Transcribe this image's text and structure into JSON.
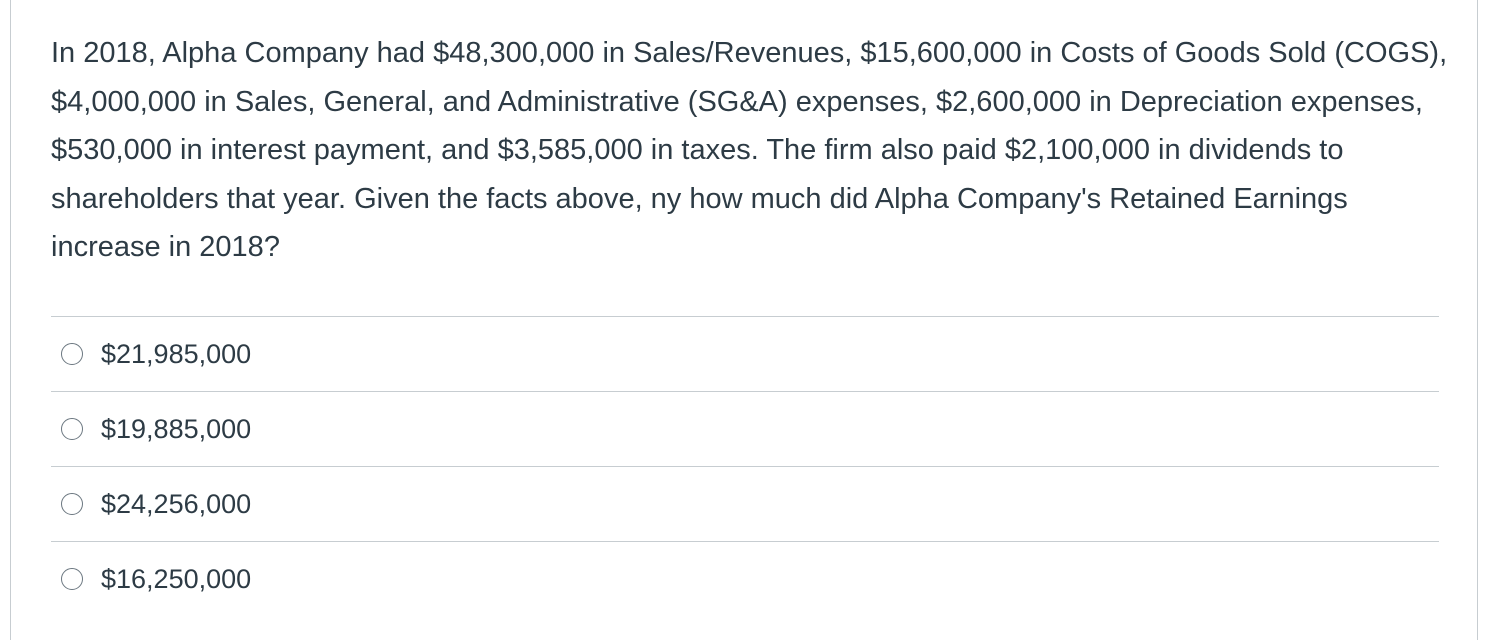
{
  "question": {
    "text": "In 2018, Alpha Company had $48,300,000 in Sales/Revenues, $15,600,000 in Costs of Goods Sold (COGS), $4,000,000 in Sales, General, and Administrative (SG&A) expenses, $2,600,000 in Depreciation expenses, $530,000 in interest payment, and $3,585,000 in taxes. The firm also paid $2,100,000 in dividends to shareholders that year. Given the facts above, ny how much did Alpha Company's Retained Earnings increase in 2018?"
  },
  "answers": [
    {
      "label": "$21,985,000",
      "selected": false
    },
    {
      "label": "$19,885,000",
      "selected": false
    },
    {
      "label": "$24,256,000",
      "selected": false
    },
    {
      "label": "$16,250,000",
      "selected": false
    }
  ],
  "colors": {
    "text": "#2d3b45",
    "divider": "#c7cdd1",
    "radio_border": "#6b7780",
    "background": "#ffffff"
  }
}
